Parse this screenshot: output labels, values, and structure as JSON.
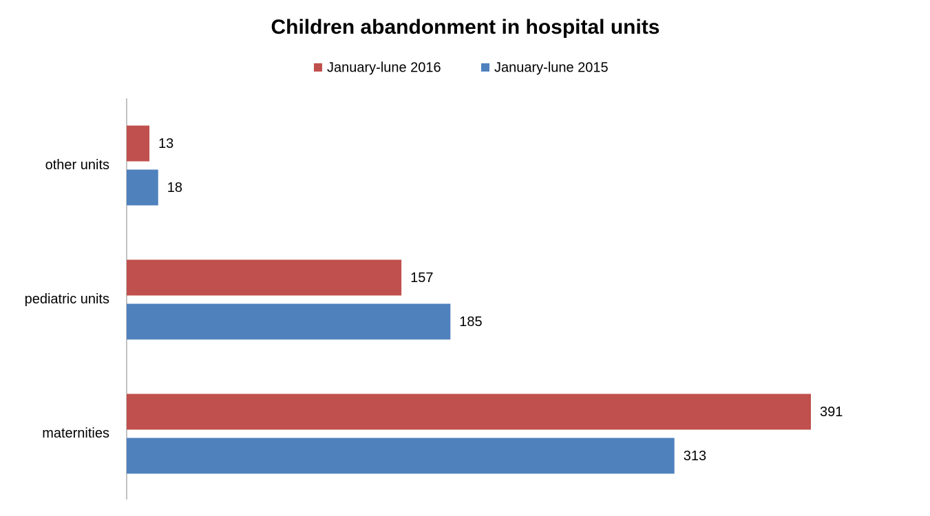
{
  "chart_data": {
    "type": "hbar",
    "title": "Children abandonment in hospital units",
    "categories": [
      "other units",
      "pediatric units",
      "maternities"
    ],
    "series": [
      {
        "name": "January-lune 2016",
        "color": "#c0504d",
        "values": [
          13,
          157,
          391
        ]
      },
      {
        "name": "January-lune 2015",
        "color": "#4f81bd",
        "values": [
          18,
          185,
          313
        ]
      }
    ],
    "xlim": [
      0,
      450
    ],
    "legend": "top"
  }
}
